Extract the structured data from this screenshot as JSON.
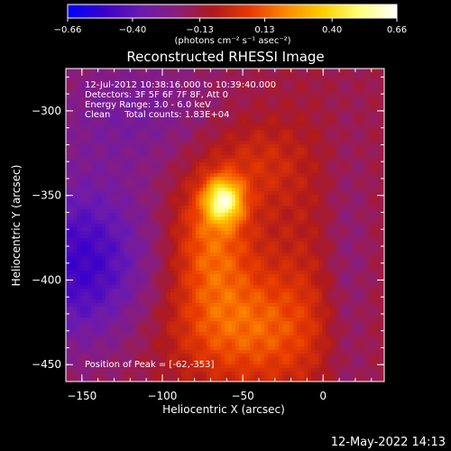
{
  "chart_data": {
    "type": "heatmap",
    "title": "Reconstructed RHESSI Image",
    "xlabel": "Heliocentric X (arcsec)",
    "ylabel": "Heliocentric Y (arcsec)",
    "xlim": [
      -160,
      38
    ],
    "ylim": [
      -460,
      -275
    ],
    "x_ticks": [
      -150,
      -100,
      -50,
      0
    ],
    "y_ticks": [
      -300,
      -350,
      -400,
      -450
    ],
    "x_tick_labels": [
      "−150",
      "−100",
      "−50",
      "0"
    ],
    "y_tick_labels": [
      "−300",
      "−350",
      "−400",
      "−450"
    ],
    "colorbar": {
      "range": [
        -0.66,
        0.66
      ],
      "ticks": [
        -0.66,
        -0.4,
        -0.13,
        0.13,
        0.4,
        0.66
      ],
      "tick_labels": [
        "−0.66",
        "−0.40",
        "−0.13",
        "0.13",
        "0.40",
        "0.66"
      ],
      "unit_label": "(photons cm⁻² s⁻¹ asec⁻²)",
      "colors": [
        "#0000ff",
        "#3b00c8",
        "#6a1ab0",
        "#8a1d7a",
        "#b01a1a",
        "#e83a00",
        "#ff8c00",
        "#ffd000",
        "#ffff80",
        "#ffffff"
      ]
    },
    "annotations": [
      "12-Jul-2012 10:38:16.000 to 10:39:40.000",
      "Detectors: 3F 5F 6F 7F 8F, Att 0",
      "Energy Range: 3.0 - 6.0 keV",
      "Clean     Total counts: 1.83E+04"
    ],
    "peak_label": "Position of Peak = [-62,-353]",
    "peak": {
      "x": -62,
      "y": -353,
      "value": 0.66
    },
    "sources": [
      {
        "x": -62,
        "y": -353,
        "sx": 8,
        "sy": 9,
        "amp": 0.55
      },
      {
        "x": -70,
        "y": -375,
        "sx": 18,
        "sy": 30,
        "amp": 0.28
      },
      {
        "x": -50,
        "y": -430,
        "sx": 35,
        "sy": 25,
        "amp": 0.26
      },
      {
        "x": -40,
        "y": -330,
        "sx": 20,
        "sy": 18,
        "amp": 0.12
      },
      {
        "x": -5,
        "y": -390,
        "sx": 30,
        "sy": 60,
        "amp": 0.1
      },
      {
        "x": -150,
        "y": -390,
        "sx": 30,
        "sy": 35,
        "amp": -0.35
      },
      {
        "x": -120,
        "y": -300,
        "sx": 35,
        "sy": 25,
        "amp": -0.15
      },
      {
        "x": 15,
        "y": -400,
        "sx": 12,
        "sy": 60,
        "amp": -0.15
      }
    ]
  },
  "footer": {
    "timestamp": "12-May-2022 14:13"
  }
}
